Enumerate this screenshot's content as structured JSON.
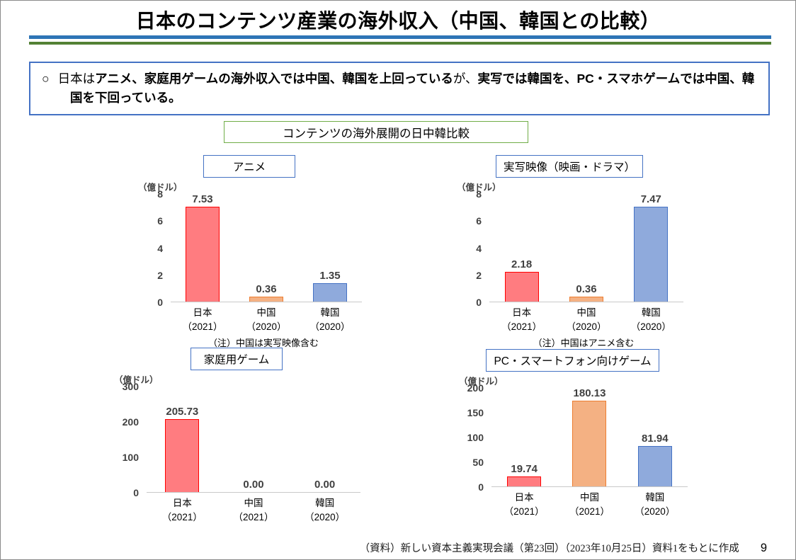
{
  "page": {
    "title": "日本のコンテンツ産業の海外収入（中国、韓国との比較）",
    "footer_source": "（資料）新しい資本主義実現会議（第23回）（2023年10月25日）資料1をもとに作成",
    "page_number": "9"
  },
  "summary": {
    "bullet": "○",
    "segments": [
      {
        "text": "日本は",
        "bold": false
      },
      {
        "text": "アニメ、家庭用ゲームの海外収入では中国、韓国を上回っている",
        "bold": true
      },
      {
        "text": "が、",
        "bold": false
      },
      {
        "text": "実写では韓国を、PC・スマホゲームでは中国、韓国を下回っている。",
        "bold": true
      }
    ]
  },
  "section_title": "コンテンツの海外展開の日中韓比較",
  "colors": {
    "title_rule_blue": "#2E75B6",
    "title_rule_green": "#538135",
    "summary_border": "#4472C4",
    "section_border": "#70AD47",
    "chart_title_border": "#4472C4",
    "axis_line": "#C9C9C9",
    "label_gray": "#404040",
    "bars": {
      "japan": {
        "fill": "#FF7C80",
        "border": "#FF0000"
      },
      "china": {
        "fill": "#F4B183",
        "border": "#ED7D31"
      },
      "korea": {
        "fill": "#8FAADC",
        "border": "#4472C4"
      }
    }
  },
  "chart_data": [
    {
      "type": "bar",
      "title": "アニメ",
      "unit": "（億ドル）",
      "categories": [
        {
          "name": "日本",
          "year": "（2021）"
        },
        {
          "name": "中国",
          "year": "（2020）"
        },
        {
          "name": "韓国",
          "year": "（2020）"
        }
      ],
      "values": [
        7.53,
        0.36,
        1.35
      ],
      "value_labels": [
        "7.53",
        "0.36",
        "1.35"
      ],
      "bar_colors": [
        "japan",
        "china",
        "korea"
      ],
      "ymax": 8,
      "yticks": [
        8,
        6,
        4,
        2,
        0
      ],
      "note": "（注）中国は実写映像含む",
      "grid": false,
      "legend": false
    },
    {
      "type": "bar",
      "title": "実写映像（映画・ドラマ）",
      "unit": "（億ドル）",
      "categories": [
        {
          "name": "日本",
          "year": "（2021）"
        },
        {
          "name": "中国",
          "year": "（2020）"
        },
        {
          "name": "韓国",
          "year": "（2020）"
        }
      ],
      "values": [
        2.18,
        0.36,
        7.47
      ],
      "value_labels": [
        "2.18",
        "0.36",
        "7.47"
      ],
      "bar_colors": [
        "japan",
        "china",
        "korea"
      ],
      "ymax": 8,
      "yticks": [
        8,
        6,
        4,
        2,
        0
      ],
      "note": "（注）中国はアニメ含む",
      "grid": false,
      "legend": false
    },
    {
      "type": "bar",
      "title": "家庭用ゲーム",
      "unit": "（億ドル）",
      "categories": [
        {
          "name": "日本",
          "year": "（2021）"
        },
        {
          "name": "中国",
          "year": "（2021）"
        },
        {
          "name": "韓国",
          "year": "（2020）"
        }
      ],
      "values": [
        205.73,
        0.0,
        0.0
      ],
      "value_labels": [
        "205.73",
        "0.00",
        "0.00"
      ],
      "bar_colors": [
        "japan",
        "china",
        "korea"
      ],
      "ymax": 300,
      "yticks": [
        300,
        200,
        100,
        0
      ],
      "note": "",
      "grid": false,
      "legend": false
    },
    {
      "type": "bar",
      "title": "PC・スマートフォン向けゲーム",
      "unit": "（億ドル）",
      "categories": [
        {
          "name": "日本",
          "year": "（2021）"
        },
        {
          "name": "中国",
          "year": "（2021）"
        },
        {
          "name": "韓国",
          "year": "（2020）"
        }
      ],
      "values": [
        19.74,
        180.13,
        81.94
      ],
      "value_labels": [
        "19.74",
        "180.13",
        "81.94"
      ],
      "bar_colors": [
        "japan",
        "china",
        "korea"
      ],
      "ymax": 200,
      "yticks": [
        200,
        150,
        100,
        50,
        0
      ],
      "note": "",
      "grid": false,
      "legend": false
    }
  ]
}
